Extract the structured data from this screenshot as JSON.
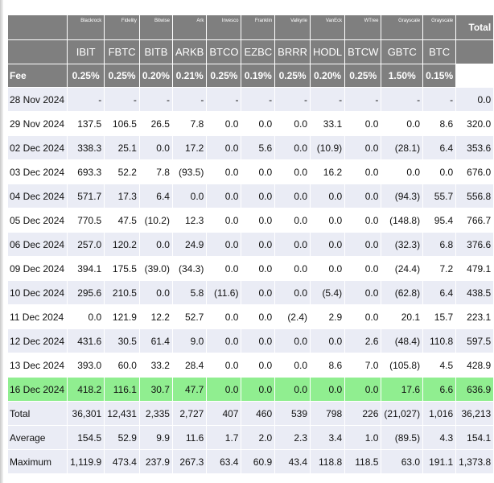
{
  "issuers": [
    "Blackrock",
    "Fidelity",
    "Bitwise",
    "Ark",
    "Invesco",
    "Franklin",
    "Valkyrie",
    "VanEck",
    "WTree",
    "Grayscale",
    "Grayscale"
  ],
  "total_label": "Total",
  "tickers": [
    "IBIT",
    "FBTC",
    "BITB",
    "ARKB",
    "BTCO",
    "EZBC",
    "BRRR",
    "HODL",
    "BTCW",
    "GBTC",
    "BTC"
  ],
  "fee_label": "Fee",
  "fees": [
    "0.25%",
    "0.25%",
    "0.20%",
    "0.21%",
    "0.25%",
    "0.19%",
    "0.25%",
    "0.20%",
    "0.25%",
    "1.50%",
    "0.15%"
  ],
  "rows": [
    {
      "date": "28 Nov 2024",
      "values": [
        "-",
        "-",
        "-",
        "-",
        "-",
        "-",
        "-",
        "-",
        "-",
        "-",
        "-"
      ],
      "total": "0.0"
    },
    {
      "date": "29 Nov 2024",
      "values": [
        "137.5",
        "106.5",
        "26.5",
        "7.8",
        "0.0",
        "0.0",
        "0.0",
        "33.1",
        "0.0",
        "0.0",
        "8.6"
      ],
      "total": "320.0"
    },
    {
      "date": "02 Dec 2024",
      "values": [
        "338.3",
        "25.1",
        "0.0",
        "17.2",
        "0.0",
        "5.6",
        "0.0",
        "(10.9)",
        "0.0",
        "(28.1)",
        "6.4"
      ],
      "total": "353.6"
    },
    {
      "date": "03 Dec 2024",
      "values": [
        "693.3",
        "52.2",
        "7.8",
        "(93.5)",
        "0.0",
        "0.0",
        "0.0",
        "16.2",
        "0.0",
        "0.0",
        "0.0"
      ],
      "total": "676.0"
    },
    {
      "date": "04 Dec 2024",
      "values": [
        "571.7",
        "17.3",
        "6.4",
        "0.0",
        "0.0",
        "0.0",
        "0.0",
        "0.0",
        "0.0",
        "(94.3)",
        "55.7"
      ],
      "total": "556.8"
    },
    {
      "date": "05 Dec 2024",
      "values": [
        "770.5",
        "47.5",
        "(10.2)",
        "12.3",
        "0.0",
        "0.0",
        "0.0",
        "0.0",
        "0.0",
        "(148.8)",
        "95.4"
      ],
      "total": "766.7"
    },
    {
      "date": "06 Dec 2024",
      "values": [
        "257.0",
        "120.2",
        "0.0",
        "24.9",
        "0.0",
        "0.0",
        "0.0",
        "0.0",
        "0.0",
        "(32.3)",
        "6.8"
      ],
      "total": "376.6"
    },
    {
      "date": "09 Dec 2024",
      "values": [
        "394.1",
        "175.5",
        "(39.0)",
        "(34.3)",
        "0.0",
        "0.0",
        "0.0",
        "0.0",
        "0.0",
        "(24.4)",
        "7.2"
      ],
      "total": "479.1"
    },
    {
      "date": "10 Dec 2024",
      "values": [
        "295.6",
        "210.5",
        "0.0",
        "5.8",
        "(11.6)",
        "0.0",
        "0.0",
        "(5.4)",
        "0.0",
        "(62.8)",
        "6.4"
      ],
      "total": "438.5"
    },
    {
      "date": "11 Dec 2024",
      "values": [
        "0.0",
        "121.9",
        "12.2",
        "52.7",
        "0.0",
        "0.0",
        "(2.4)",
        "2.9",
        "0.0",
        "20.1",
        "15.7"
      ],
      "total": "223.1"
    },
    {
      "date": "12 Dec 2024",
      "values": [
        "431.6",
        "30.5",
        "61.4",
        "9.0",
        "0.0",
        "0.0",
        "0.0",
        "0.0",
        "2.6",
        "(48.4)",
        "110.8"
      ],
      "total": "597.5"
    },
    {
      "date": "13 Dec 2024",
      "values": [
        "393.0",
        "60.0",
        "33.2",
        "28.4",
        "0.0",
        "0.0",
        "0.0",
        "8.6",
        "7.0",
        "(105.8)",
        "4.5"
      ],
      "total": "428.9"
    },
    {
      "date": "16 Dec 2024",
      "values": [
        "418.2",
        "116.1",
        "30.7",
        "47.7",
        "0.0",
        "0.0",
        "0.0",
        "0.0",
        "0.0",
        "17.6",
        "6.6"
      ],
      "total": "636.9"
    }
  ],
  "summary": [
    {
      "label": "Total",
      "values": [
        "36,301",
        "12,431",
        "2,335",
        "2,727",
        "407",
        "460",
        "539",
        "798",
        "226",
        "(21,027)",
        "1,016"
      ],
      "total": "36,213"
    },
    {
      "label": "Average",
      "values": [
        "154.5",
        "52.9",
        "9.9",
        "11.6",
        "1.7",
        "2.0",
        "2.3",
        "3.4",
        "1.0",
        "(89.5)",
        "4.3"
      ],
      "total": "154.1"
    },
    {
      "label": "Maximum",
      "values": [
        "1,119.9",
        "473.4",
        "237.9",
        "267.3",
        "63.4",
        "60.9",
        "43.4",
        "118.8",
        "118.5",
        "63.0",
        "191.1"
      ],
      "total": "1,373.8"
    }
  ],
  "colors": {
    "header_bg": "#7f7f7f",
    "row_alt": "#eaecf5",
    "highlight": "#90ee90",
    "negative": "#e8141b"
  }
}
